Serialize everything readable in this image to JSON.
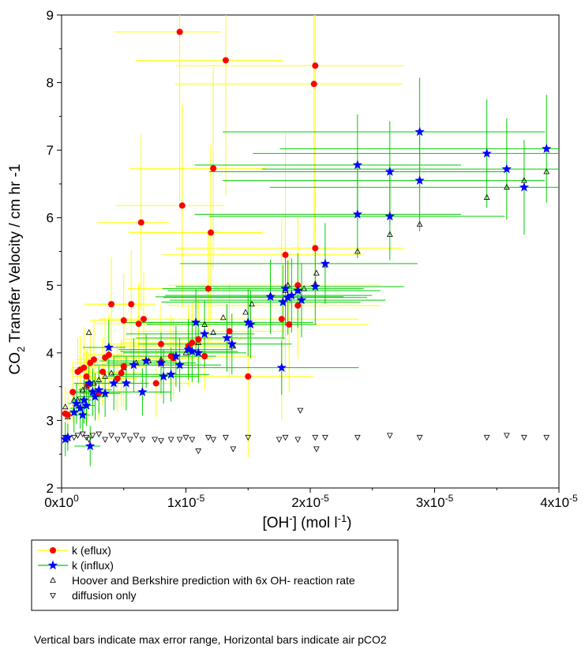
{
  "chart_data": {
    "type": "scatter",
    "xlabel": {
      "main": "[OH",
      "sup": "-",
      "rest": "] (mol l",
      "exp": "-1",
      "close": ")"
    },
    "ylabel": {
      "a": "CO",
      "sub": "2",
      "b": " Transfer Velocity / cm hr",
      "c": " -1"
    },
    "xlim": [
      0,
      4e-05
    ],
    "ylim": [
      2,
      9
    ],
    "x_ticks": [
      {
        "value": 0,
        "base": "0x10",
        "exp": "0"
      },
      {
        "value": 1e-05,
        "base": "1x10",
        "exp": "-5"
      },
      {
        "value": 2e-05,
        "base": "2x10",
        "exp": "-5"
      },
      {
        "value": 3e-05,
        "base": "3x10",
        "exp": "-5"
      },
      {
        "value": 4e-05,
        "base": "4x10",
        "exp": "-5"
      }
    ],
    "y_ticks": [
      "2",
      "3",
      "4",
      "5",
      "6",
      "7",
      "8",
      "9"
    ],
    "legend_position": "bottom",
    "series": [
      {
        "name": "k (eflux)",
        "marker": "circle",
        "color": "#ff0000",
        "errorbar_color": "#ffff00",
        "points": [
          [
            3e-07,
            3.1,
            0.4
          ],
          [
            5e-07,
            3.08,
            0.3
          ],
          [
            9e-07,
            3.42,
            0.45
          ],
          [
            1.3e-06,
            3.72,
            0.5
          ],
          [
            1.5e-06,
            3.75,
            0.5
          ],
          [
            1.8e-06,
            3.78,
            0.6
          ],
          [
            2e-06,
            3.65,
            0.4
          ],
          [
            2.1e-06,
            3.52,
            0.5
          ],
          [
            2.3e-06,
            3.85,
            0.5
          ],
          [
            2.6e-06,
            3.9,
            0.6
          ],
          [
            3e-06,
            3.4,
            0.4
          ],
          [
            3.3e-06,
            3.72,
            0.5
          ],
          [
            3.5e-06,
            3.93,
            0.6
          ],
          [
            3.8e-06,
            3.97,
            0.6
          ],
          [
            4e-06,
            4.72,
            0.7
          ],
          [
            4.5e-06,
            3.62,
            0.5
          ],
          [
            4.8e-06,
            3.7,
            0.5
          ],
          [
            5e-06,
            3.8,
            0.6
          ],
          [
            5e-06,
            4.48,
            0.7
          ],
          [
            5.6e-06,
            4.72,
            0.8
          ],
          [
            6.2e-06,
            4.43,
            0.6
          ],
          [
            6.4e-06,
            5.93,
            1.3
          ],
          [
            6.6e-06,
            4.5,
            0.7
          ],
          [
            7.6e-06,
            3.55,
            0.5
          ],
          [
            8e-06,
            3.85,
            0.5
          ],
          [
            8e-06,
            4.13,
            0.6
          ],
          [
            8.8e-06,
            3.95,
            0.6
          ],
          [
            9e-06,
            3.92,
            0.6
          ],
          [
            9.5e-06,
            8.75,
            2.5
          ],
          [
            9.7e-06,
            6.18,
            1.5
          ],
          [
            1.02e-05,
            4.1,
            0.6
          ],
          [
            1.05e-05,
            4.15,
            0.6
          ],
          [
            1.1e-05,
            4.2,
            0.6
          ],
          [
            1.15e-05,
            3.95,
            0.5
          ],
          [
            1.18e-05,
            4.95,
            0.8
          ],
          [
            1.2e-05,
            5.78,
            1.3
          ],
          [
            1.22e-05,
            6.73,
            1.5
          ],
          [
            1.32e-05,
            8.33,
            2.0
          ],
          [
            1.35e-05,
            4.32,
            0.7
          ],
          [
            1.5e-05,
            3.65,
            1.2
          ],
          [
            1.77e-05,
            4.5,
            1.5
          ],
          [
            1.8e-05,
            5.45,
            1.8
          ],
          [
            1.83e-05,
            4.42,
            1.0
          ],
          [
            1.9e-05,
            4.7,
            0.8
          ],
          [
            2.03e-05,
            7.98,
            2.5
          ],
          [
            2.04e-05,
            8.25,
            2.5
          ],
          [
            2.04e-05,
            5.55,
            1.0
          ],
          [
            1.9e-05,
            5.0,
            1.0
          ]
        ]
      },
      {
        "name": "k (influx)",
        "marker": "star",
        "color": "#0000ff",
        "errorbar_color": "#00cc00",
        "points": [
          [
            3e-07,
            2.72,
            0.25
          ],
          [
            5e-07,
            2.75,
            0.2
          ],
          [
            1e-06,
            3.12,
            0.3
          ],
          [
            1.2e-06,
            3.25,
            0.3
          ],
          [
            1.5e-06,
            3.18,
            0.3
          ],
          [
            1.7e-06,
            3.08,
            0.25
          ],
          [
            1.8e-06,
            3.3,
            0.35
          ],
          [
            2e-06,
            3.22,
            0.3
          ],
          [
            2.2e-06,
            3.55,
            0.35
          ],
          [
            2.3e-06,
            2.62,
            0.3
          ],
          [
            2.5e-06,
            3.42,
            0.35
          ],
          [
            2.7e-06,
            3.35,
            0.35
          ],
          [
            3e-06,
            3.45,
            0.35
          ],
          [
            3.5e-06,
            3.4,
            0.35
          ],
          [
            3.8e-06,
            4.08,
            0.4
          ],
          [
            4.2e-06,
            3.55,
            0.4
          ],
          [
            5.2e-06,
            3.55,
            0.4
          ],
          [
            5.8e-06,
            3.82,
            0.4
          ],
          [
            6.5e-06,
            3.42,
            0.35
          ],
          [
            6.8e-06,
            3.88,
            0.4
          ],
          [
            8e-06,
            3.85,
            0.45
          ],
          [
            8.2e-06,
            3.65,
            0.4
          ],
          [
            8.8e-06,
            3.68,
            0.4
          ],
          [
            9.2e-06,
            3.95,
            0.45
          ],
          [
            9.5e-06,
            3.82,
            0.4
          ],
          [
            1.02e-05,
            4.05,
            0.45
          ],
          [
            1.05e-05,
            4.02,
            0.45
          ],
          [
            1.08e-05,
            4.45,
            0.5
          ],
          [
            1.1e-05,
            4.0,
            0.45
          ],
          [
            1.15e-05,
            4.28,
            0.5
          ],
          [
            1.33e-05,
            4.22,
            0.5
          ],
          [
            1.37e-05,
            4.13,
            0.45
          ],
          [
            1.5e-05,
            4.45,
            0.5
          ],
          [
            1.52e-05,
            4.42,
            0.5
          ],
          [
            1.68e-05,
            4.83,
            0.55
          ],
          [
            1.77e-05,
            3.78,
            0.4
          ],
          [
            1.78e-05,
            4.75,
            0.55
          ],
          [
            1.8e-05,
            4.95,
            0.55
          ],
          [
            1.82e-05,
            4.82,
            0.55
          ],
          [
            1.85e-05,
            4.85,
            0.55
          ],
          [
            1.9e-05,
            4.92,
            0.55
          ],
          [
            1.93e-05,
            4.78,
            0.55
          ],
          [
            2.04e-05,
            4.98,
            0.55
          ],
          [
            2.12e-05,
            5.32,
            0.6
          ],
          [
            2.38e-05,
            6.78,
            0.75
          ],
          [
            2.38e-05,
            6.05,
            0.65
          ],
          [
            2.64e-05,
            6.68,
            0.75
          ],
          [
            2.64e-05,
            6.02,
            0.65
          ],
          [
            2.88e-05,
            6.55,
            0.75
          ],
          [
            2.88e-05,
            7.27,
            0.8
          ],
          [
            3.42e-05,
            6.95,
            0.8
          ],
          [
            3.58e-05,
            6.72,
            0.75
          ],
          [
            3.72e-05,
            6.45,
            0.7
          ],
          [
            3.9e-05,
            7.02,
            0.8
          ]
        ]
      },
      {
        "name": "Hoover and Berkshire prediction with 6x OH- reaction rate",
        "marker": "triangle-up",
        "color": "#000000",
        "points": [
          [
            3e-07,
            3.2
          ],
          [
            5e-07,
            3.05
          ],
          [
            1e-06,
            3.3
          ],
          [
            1.3e-06,
            3.3
          ],
          [
            1.7e-06,
            3.45
          ],
          [
            2e-06,
            3.5
          ],
          [
            2.2e-06,
            4.3
          ],
          [
            2.3e-06,
            3.55
          ],
          [
            2.6e-06,
            3.55
          ],
          [
            3e-06,
            3.6
          ],
          [
            3.5e-06,
            3.65
          ],
          [
            4e-06,
            3.7
          ],
          [
            5e-06,
            3.78
          ],
          [
            6e-06,
            3.85
          ],
          [
            7e-06,
            3.88
          ],
          [
            8e-06,
            3.9
          ],
          [
            9e-06,
            3.95
          ],
          [
            1e-05,
            4.0
          ],
          [
            1.1e-05,
            4.15
          ],
          [
            1.15e-05,
            4.42
          ],
          [
            1.22e-05,
            4.3
          ],
          [
            1.3e-05,
            4.52
          ],
          [
            1.38e-05,
            4.1
          ],
          [
            1.48e-05,
            4.6
          ],
          [
            1.53e-05,
            4.72
          ],
          [
            1.68e-05,
            4.85
          ],
          [
            1.8e-05,
            4.92
          ],
          [
            1.82e-05,
            5.0
          ],
          [
            1.9e-05,
            4.92
          ],
          [
            1.95e-05,
            4.95
          ],
          [
            2.04e-05,
            5.02
          ],
          [
            2.05e-05,
            5.18
          ],
          [
            2.12e-05,
            5.3
          ],
          [
            2.38e-05,
            5.5
          ],
          [
            2.64e-05,
            5.75
          ],
          [
            2.88e-05,
            5.9
          ],
          [
            3.42e-05,
            6.3
          ],
          [
            3.58e-05,
            6.45
          ],
          [
            3.72e-05,
            6.55
          ],
          [
            3.9e-05,
            6.68
          ]
        ]
      },
      {
        "name": "diffusion only",
        "marker": "triangle-down",
        "color": "#000000",
        "points": [
          [
            3e-07,
            2.75
          ],
          [
            5e-07,
            2.72
          ],
          [
            1e-06,
            2.75
          ],
          [
            1.3e-06,
            2.78
          ],
          [
            1.7e-06,
            2.8
          ],
          [
            2e-06,
            2.75
          ],
          [
            2.2e-06,
            2.72
          ],
          [
            2.5e-06,
            2.78
          ],
          [
            3e-06,
            2.8
          ],
          [
            3.5e-06,
            2.72
          ],
          [
            4e-06,
            2.78
          ],
          [
            4.5e-06,
            2.72
          ],
          [
            5e-06,
            2.78
          ],
          [
            5.5e-06,
            2.72
          ],
          [
            6e-06,
            2.78
          ],
          [
            6.5e-06,
            2.72
          ],
          [
            7.5e-06,
            2.72
          ],
          [
            8e-06,
            2.7
          ],
          [
            8.8e-06,
            2.72
          ],
          [
            9.5e-06,
            2.72
          ],
          [
            1e-05,
            2.75
          ],
          [
            1.05e-05,
            2.72
          ],
          [
            1.1e-05,
            2.55
          ],
          [
            1.18e-05,
            2.75
          ],
          [
            1.22e-05,
            2.72
          ],
          [
            1.32e-05,
            2.75
          ],
          [
            1.38e-05,
            2.58
          ],
          [
            1.5e-05,
            2.75
          ],
          [
            1.75e-05,
            2.72
          ],
          [
            1.8e-05,
            2.75
          ],
          [
            1.9e-05,
            2.72
          ],
          [
            1.92e-05,
            3.15
          ],
          [
            2.04e-05,
            2.75
          ],
          [
            2.05e-05,
            2.58
          ],
          [
            2.12e-05,
            2.75
          ],
          [
            2.38e-05,
            2.75
          ],
          [
            2.64e-05,
            2.78
          ],
          [
            2.88e-05,
            2.75
          ],
          [
            3.42e-05,
            2.75
          ],
          [
            3.58e-05,
            2.78
          ],
          [
            3.72e-05,
            2.75
          ],
          [
            3.9e-05,
            2.75
          ]
        ]
      }
    ]
  },
  "footnote": "Vertical bars indicate max error range, Horizontal bars indicate air pCO2"
}
